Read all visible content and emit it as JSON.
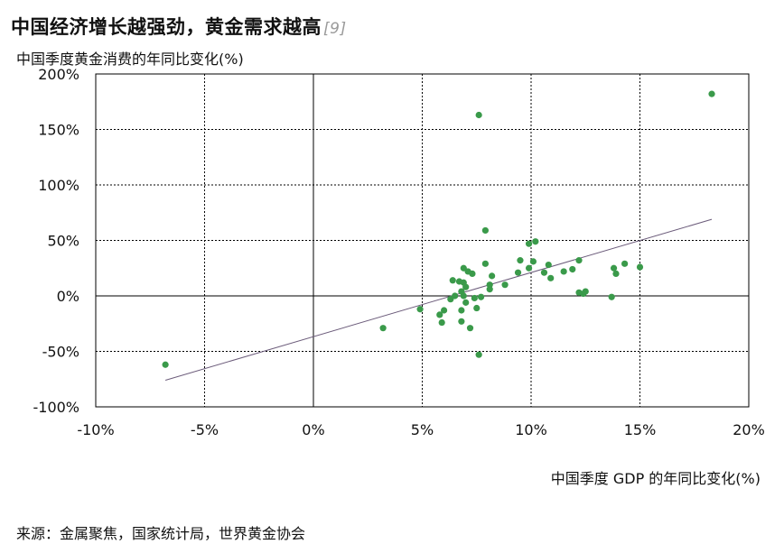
{
  "title": "中国经济增长越强劲，黄金需求越高",
  "title_ref": "[9]",
  "source": "来源：金属聚焦，国家统计局，世界黄金协会",
  "colors": {
    "point": "#3a9a4a",
    "trend": "#6b5b7a",
    "grid": "#000000"
  },
  "chart_data": {
    "type": "scatter",
    "xlabel": "中国季度 GDP 的年同比变化(%)",
    "ylabel": "中国季度黄金消费的年同比变化(%)",
    "xlim": [
      -10,
      20
    ],
    "ylim": [
      -100,
      200
    ],
    "xticks": [
      -10,
      -5,
      0,
      5,
      10,
      15,
      20
    ],
    "yticks": [
      -100,
      -50,
      0,
      50,
      100,
      150,
      200
    ],
    "xtick_labels": [
      "-10%",
      "-5%",
      "0%",
      "5%",
      "10%",
      "15%",
      "20%"
    ],
    "ytick_labels": [
      "-100%",
      "-50%",
      "0%",
      "50%",
      "100%",
      "150%",
      "200%"
    ],
    "grid": true,
    "points": [
      {
        "x": -6.8,
        "y": -62
      },
      {
        "x": 3.2,
        "y": -29
      },
      {
        "x": 4.9,
        "y": -12
      },
      {
        "x": 5.8,
        "y": -17
      },
      {
        "x": 5.9,
        "y": -24
      },
      {
        "x": 6.0,
        "y": -13
      },
      {
        "x": 6.3,
        "y": -3
      },
      {
        "x": 6.4,
        "y": 14
      },
      {
        "x": 6.5,
        "y": 0
      },
      {
        "x": 6.7,
        "y": 13
      },
      {
        "x": 6.8,
        "y": -23
      },
      {
        "x": 6.8,
        "y": -13
      },
      {
        "x": 6.8,
        "y": 4
      },
      {
        "x": 6.9,
        "y": 0
      },
      {
        "x": 6.9,
        "y": 25
      },
      {
        "x": 6.9,
        "y": 12
      },
      {
        "x": 7.0,
        "y": 8
      },
      {
        "x": 7.0,
        "y": -6
      },
      {
        "x": 7.1,
        "y": 22
      },
      {
        "x": 7.2,
        "y": -29
      },
      {
        "x": 7.3,
        "y": 20
      },
      {
        "x": 7.4,
        "y": -2
      },
      {
        "x": 7.5,
        "y": -11
      },
      {
        "x": 7.6,
        "y": -53
      },
      {
        "x": 7.6,
        "y": 163
      },
      {
        "x": 7.7,
        "y": -1
      },
      {
        "x": 7.9,
        "y": 59
      },
      {
        "x": 7.9,
        "y": 29
      },
      {
        "x": 8.1,
        "y": 6
      },
      {
        "x": 8.1,
        "y": 10
      },
      {
        "x": 8.2,
        "y": 18
      },
      {
        "x": 8.8,
        "y": 10
      },
      {
        "x": 9.4,
        "y": 21
      },
      {
        "x": 9.5,
        "y": 32
      },
      {
        "x": 9.9,
        "y": 47
      },
      {
        "x": 9.9,
        "y": 25
      },
      {
        "x": 10.1,
        "y": 31
      },
      {
        "x": 10.2,
        "y": 49
      },
      {
        "x": 10.6,
        "y": 21
      },
      {
        "x": 10.8,
        "y": 28
      },
      {
        "x": 10.9,
        "y": 16
      },
      {
        "x": 11.5,
        "y": 22
      },
      {
        "x": 11.9,
        "y": 24
      },
      {
        "x": 12.2,
        "y": 3
      },
      {
        "x": 12.2,
        "y": 32
      },
      {
        "x": 12.4,
        "y": 2
      },
      {
        "x": 12.5,
        "y": 4
      },
      {
        "x": 13.7,
        "y": -1
      },
      {
        "x": 13.8,
        "y": 25
      },
      {
        "x": 13.9,
        "y": 20
      },
      {
        "x": 14.3,
        "y": 29
      },
      {
        "x": 15.0,
        "y": 26
      },
      {
        "x": 18.3,
        "y": 182
      }
    ],
    "trendline": {
      "x": [
        -6.8,
        18.3
      ],
      "y": [
        -76,
        69
      ]
    }
  }
}
